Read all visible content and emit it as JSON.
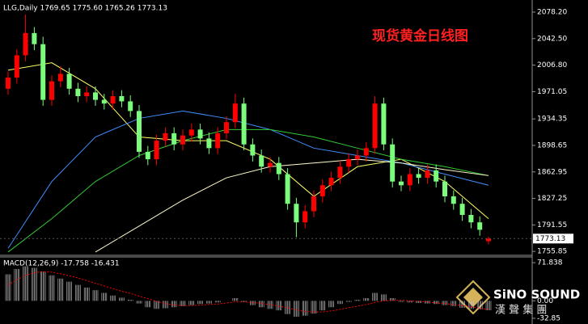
{
  "chart_data": [
    {
      "type": "candlestick",
      "header": "LLG,Daily  1769.65 1775.60 1765.26 1773.13",
      "title": "现货黄金日线图",
      "price_label": "1773.13",
      "up_color": "#ff0000",
      "down_color": "#7cfc7c",
      "ylim": [
        1750.6,
        2094.5
      ],
      "yticks": [
        {
          "value": 2078.2,
          "label": "2078.20"
        },
        {
          "value": 2042.5,
          "label": "2042.50"
        },
        {
          "value": 2006.8,
          "label": "2006.80"
        },
        1971.05,
        1934.35,
        1898.65,
        1862.95,
        1827.25,
        1791.55,
        1755.85
      ],
      "open": [
        1975,
        1990,
        2020,
        2050,
        2035,
        1960,
        1985,
        1995,
        1975,
        1965,
        1970,
        1960,
        1955,
        1965,
        1958,
        1945,
        1890,
        1880,
        1905,
        1915,
        1900,
        1912,
        1920,
        1908,
        1895,
        1915,
        1930,
        1955,
        1900,
        1885,
        1870,
        1875,
        1860,
        1820,
        1795,
        1810,
        1830,
        1845,
        1855,
        1870,
        1880,
        1885,
        1895,
        1955,
        1900,
        1850,
        1845,
        1860,
        1855,
        1865,
        1850,
        1830,
        1820,
        1805,
        1795,
        1769.65
      ],
      "high": [
        1998,
        2028,
        2075,
        2058,
        2045,
        1993,
        2005,
        2003,
        1983,
        1978,
        1978,
        1968,
        1973,
        1973,
        1966,
        1953,
        1898,
        1913,
        1923,
        1923,
        1920,
        1928,
        1928,
        1916,
        1923,
        1938,
        1968,
        1963,
        1908,
        1893,
        1883,
        1883,
        1868,
        1828,
        1818,
        1838,
        1853,
        1863,
        1878,
        1888,
        1893,
        1903,
        1965,
        1963,
        1908,
        1858,
        1868,
        1868,
        1873,
        1873,
        1858,
        1838,
        1828,
        1813,
        1803,
        1775.6
      ],
      "low": [
        1967,
        1982,
        2012,
        2027,
        1952,
        1952,
        1977,
        1967,
        1957,
        1957,
        1952,
        1947,
        1947,
        1950,
        1937,
        1882,
        1872,
        1872,
        1897,
        1892,
        1892,
        1904,
        1900,
        1887,
        1887,
        1907,
        1922,
        1892,
        1877,
        1862,
        1862,
        1852,
        1812,
        1775,
        1787,
        1802,
        1822,
        1837,
        1847,
        1862,
        1872,
        1877,
        1887,
        1892,
        1842,
        1837,
        1837,
        1847,
        1847,
        1842,
        1822,
        1812,
        1797,
        1787,
        1777,
        1765.26
      ],
      "close": [
        1990,
        2020,
        2050,
        2035,
        1960,
        1985,
        1995,
        1975,
        1965,
        1970,
        1960,
        1955,
        1965,
        1958,
        1945,
        1890,
        1880,
        1905,
        1915,
        1900,
        1912,
        1920,
        1908,
        1895,
        1915,
        1930,
        1955,
        1900,
        1885,
        1870,
        1875,
        1860,
        1820,
        1795,
        1810,
        1830,
        1845,
        1855,
        1870,
        1880,
        1885,
        1895,
        1955,
        1900,
        1850,
        1845,
        1860,
        1855,
        1865,
        1850,
        1830,
        1820,
        1805,
        1795,
        1785,
        1773.13
      ],
      "series": [
        {
          "color": "#ffff66",
          "x": [
            0,
            5,
            10,
            15,
            20,
            25,
            30,
            35,
            40,
            45,
            50,
            55
          ],
          "values": [
            2000,
            2010,
            1975,
            1910,
            1905,
            1905,
            1880,
            1830,
            1870,
            1880,
            1850,
            1800
          ]
        },
        {
          "color": "#3f8fff",
          "x": [
            0,
            5,
            10,
            15,
            20,
            25,
            30,
            35,
            40,
            45,
            50,
            55
          ],
          "values": [
            1760,
            1850,
            1910,
            1935,
            1945,
            1935,
            1920,
            1895,
            1885,
            1875,
            1860,
            1845
          ]
        },
        {
          "color": "#33cc33",
          "x": [
            0,
            5,
            10,
            15,
            20,
            25,
            30,
            35,
            40,
            45,
            50,
            55
          ],
          "values": [
            1755,
            1800,
            1850,
            1885,
            1905,
            1920,
            1920,
            1910,
            1895,
            1880,
            1870,
            1858
          ]
        },
        {
          "color": "#fffacd",
          "x": [
            10,
            15,
            20,
            25,
            30,
            35,
            40,
            45,
            50,
            55
          ],
          "values": [
            1755,
            1790,
            1825,
            1855,
            1870,
            1875,
            1880,
            1875,
            1866,
            1858
          ]
        }
      ]
    },
    {
      "type": "macd",
      "title": "MACD(12,26,9) -17.758 -16.431",
      "color": "#c0c0c0",
      "signal_color": "#ff0000",
      "ylim": [
        -43.6,
        82.6
      ],
      "yticks": [
        71.838,
        {
          "value": 0,
          "label": "0.00"
        },
        -32.85
      ],
      "values": [
        50,
        60,
        65,
        62,
        55,
        48,
        42,
        36,
        30,
        25,
        20,
        15,
        10,
        6,
        2,
        -5,
        -12,
        -15,
        -14,
        -12,
        -10,
        -8,
        -6,
        -5,
        -3,
        0,
        5,
        -2,
        -8,
        -12,
        -15,
        -18,
        -25,
        -30,
        -28,
        -24,
        -18,
        -12,
        -6,
        -2,
        2,
        5,
        15,
        12,
        5,
        -2,
        -3,
        -4,
        -5,
        -6,
        -8,
        -10,
        -13,
        -15,
        -16,
        -17.758
      ],
      "signal": [
        30,
        40,
        48,
        53,
        55,
        54,
        51,
        47,
        43,
        38,
        33,
        28,
        23,
        18,
        14,
        9,
        4,
        -1,
        -5,
        -8,
        -9,
        -9,
        -8,
        -7,
        -6,
        -4,
        -2,
        -2,
        -3,
        -5,
        -7,
        -10,
        -13,
        -17,
        -20,
        -21,
        -21,
        -19,
        -16,
        -13,
        -10,
        -7,
        -3,
        0,
        1,
        1,
        0,
        -1,
        -2,
        -4,
        -5,
        -7,
        -9,
        -11,
        -14,
        -16.431
      ]
    }
  ],
  "logo": {
    "name": "SiNO SOUND",
    "subtitle": "漢 聲 集 團"
  }
}
